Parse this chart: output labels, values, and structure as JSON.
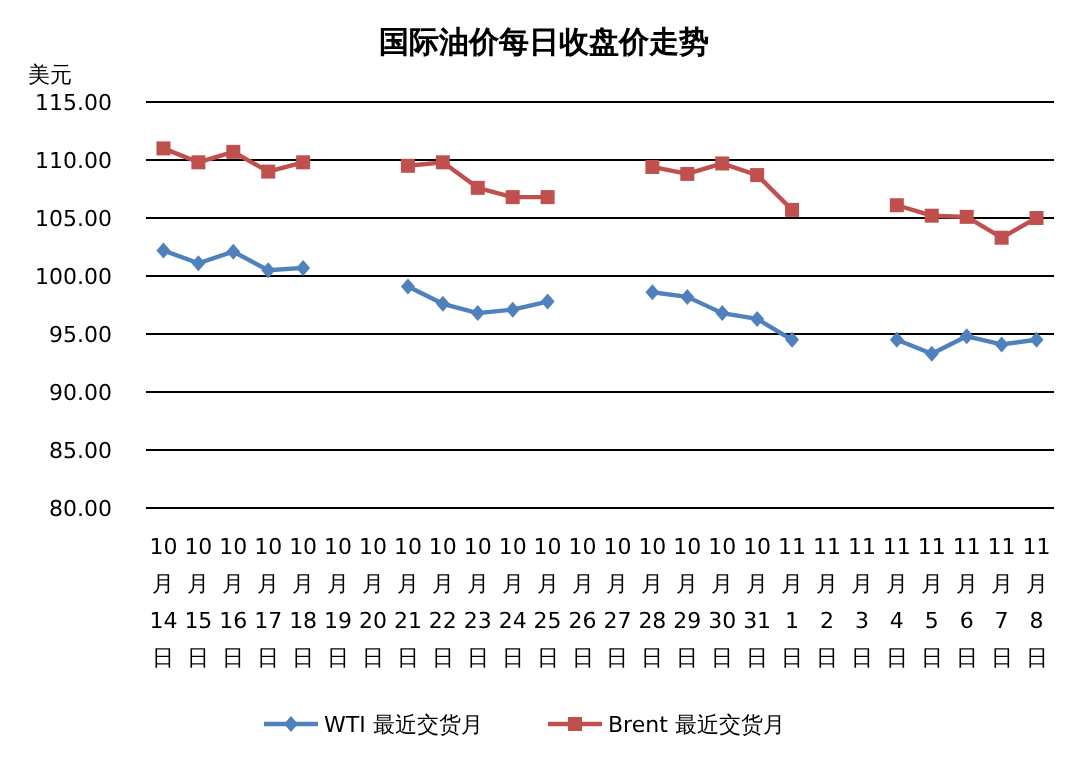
{
  "chart_data": {
    "type": "line",
    "title": "国际油价每日收盘价走势",
    "ylabel": "美元",
    "categories": [
      "10月14日",
      "10月15日",
      "10月16日",
      "10月17日",
      "10月18日",
      "10月19日",
      "10月20日",
      "10月21日",
      "10月22日",
      "10月23日",
      "10月24日",
      "10月25日",
      "10月26日",
      "10月27日",
      "10月28日",
      "10月29日",
      "10月30日",
      "10月31日",
      "11月1日",
      "11月2日",
      "11月3日",
      "11月4日",
      "11月5日",
      "11月6日",
      "11月7日",
      "11月8日"
    ],
    "series": [
      {
        "name": "WTI 最近交货月",
        "color": "#4f81bd",
        "marker": "diamond",
        "values": [
          102.2,
          101.1,
          102.1,
          100.5,
          100.7,
          null,
          null,
          99.1,
          97.6,
          96.8,
          97.1,
          97.8,
          null,
          null,
          98.6,
          98.2,
          96.8,
          96.3,
          94.5,
          null,
          null,
          94.5,
          93.3,
          94.8,
          94.1,
          94.5
        ]
      },
      {
        "name": "Brent 最近交货月",
        "color": "#c0504d",
        "marker": "square",
        "values": [
          111.0,
          109.8,
          110.7,
          109.0,
          109.8,
          null,
          null,
          109.5,
          109.8,
          107.6,
          106.8,
          106.8,
          null,
          null,
          109.4,
          108.8,
          109.7,
          108.7,
          105.7,
          null,
          null,
          106.1,
          105.2,
          105.1,
          103.3,
          105.0
        ]
      }
    ],
    "ylim": [
      80,
      115
    ],
    "yticks": [
      {
        "value": 80,
        "label": "80.00"
      },
      {
        "value": 85,
        "label": "85.00"
      },
      {
        "value": 90,
        "label": "90.00"
      },
      {
        "value": 95,
        "label": "95.00"
      },
      {
        "value": 100,
        "label": "100.00"
      },
      {
        "value": 105,
        "label": "105.00"
      },
      {
        "value": 110,
        "label": "110.00"
      },
      {
        "value": 115,
        "label": "115.00"
      }
    ],
    "grid": "y",
    "legend": "bottom"
  }
}
